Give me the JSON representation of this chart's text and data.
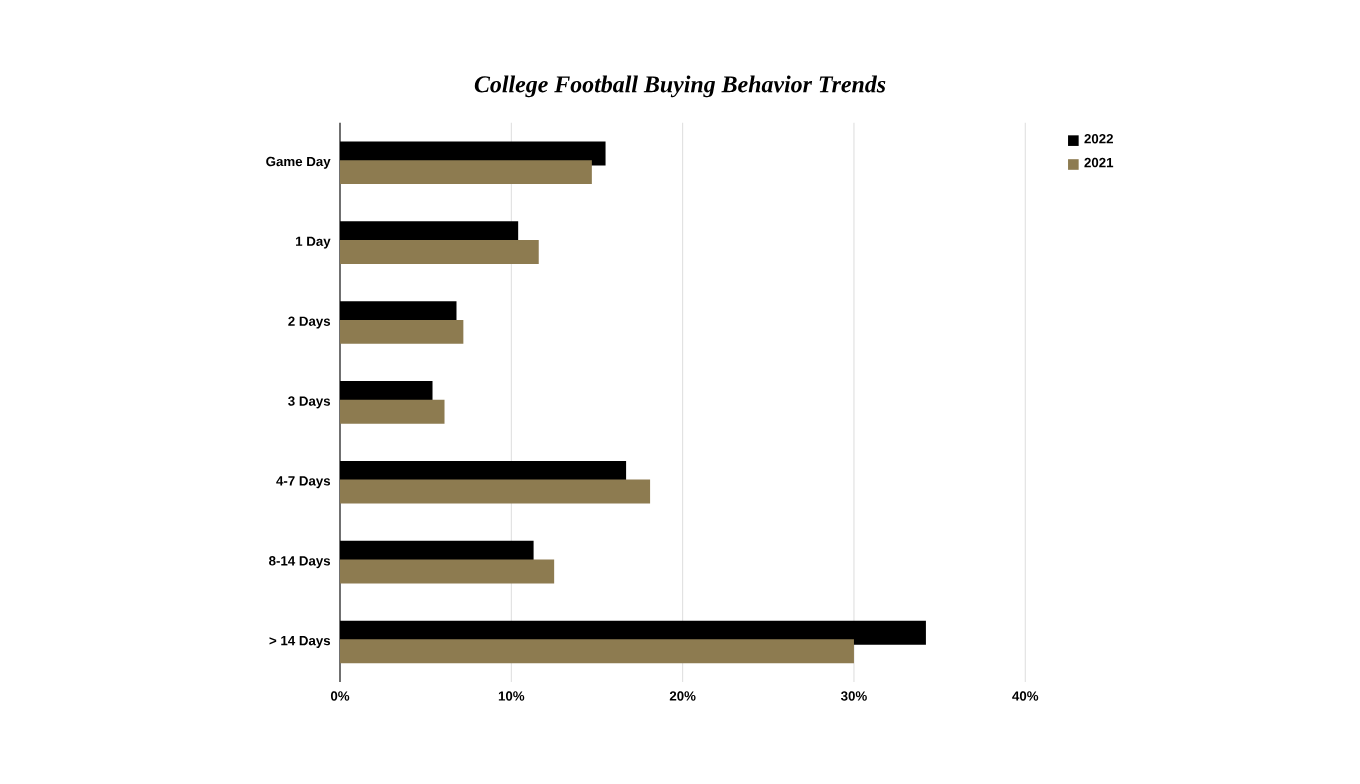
{
  "chart_data": {
    "type": "bar",
    "orientation": "horizontal",
    "title": "College Football Buying Behavior Trends",
    "categories": [
      "Game Day",
      "1 Day",
      "2 Days",
      "3 Days",
      "4-7 Days",
      "8-14 Days",
      "> 14 Days"
    ],
    "series": [
      {
        "name": "2022",
        "color": "#000000",
        "values": [
          15.5,
          10.4,
          6.8,
          5.4,
          16.7,
          11.3,
          34.2
        ]
      },
      {
        "name": "2021",
        "color": "#8d7b50",
        "values": [
          14.7,
          11.6,
          7.2,
          6.1,
          18.1,
          12.5,
          30.0
        ]
      }
    ],
    "xlim": [
      0,
      40
    ],
    "xticks": [
      {
        "value": 0,
        "label": "0%"
      },
      {
        "value": 10,
        "label": "10%"
      },
      {
        "value": 20,
        "label": "20%"
      },
      {
        "value": 30,
        "label": "30%"
      },
      {
        "value": 40,
        "label": "40%"
      }
    ],
    "grid": "x",
    "legend": "top right"
  }
}
